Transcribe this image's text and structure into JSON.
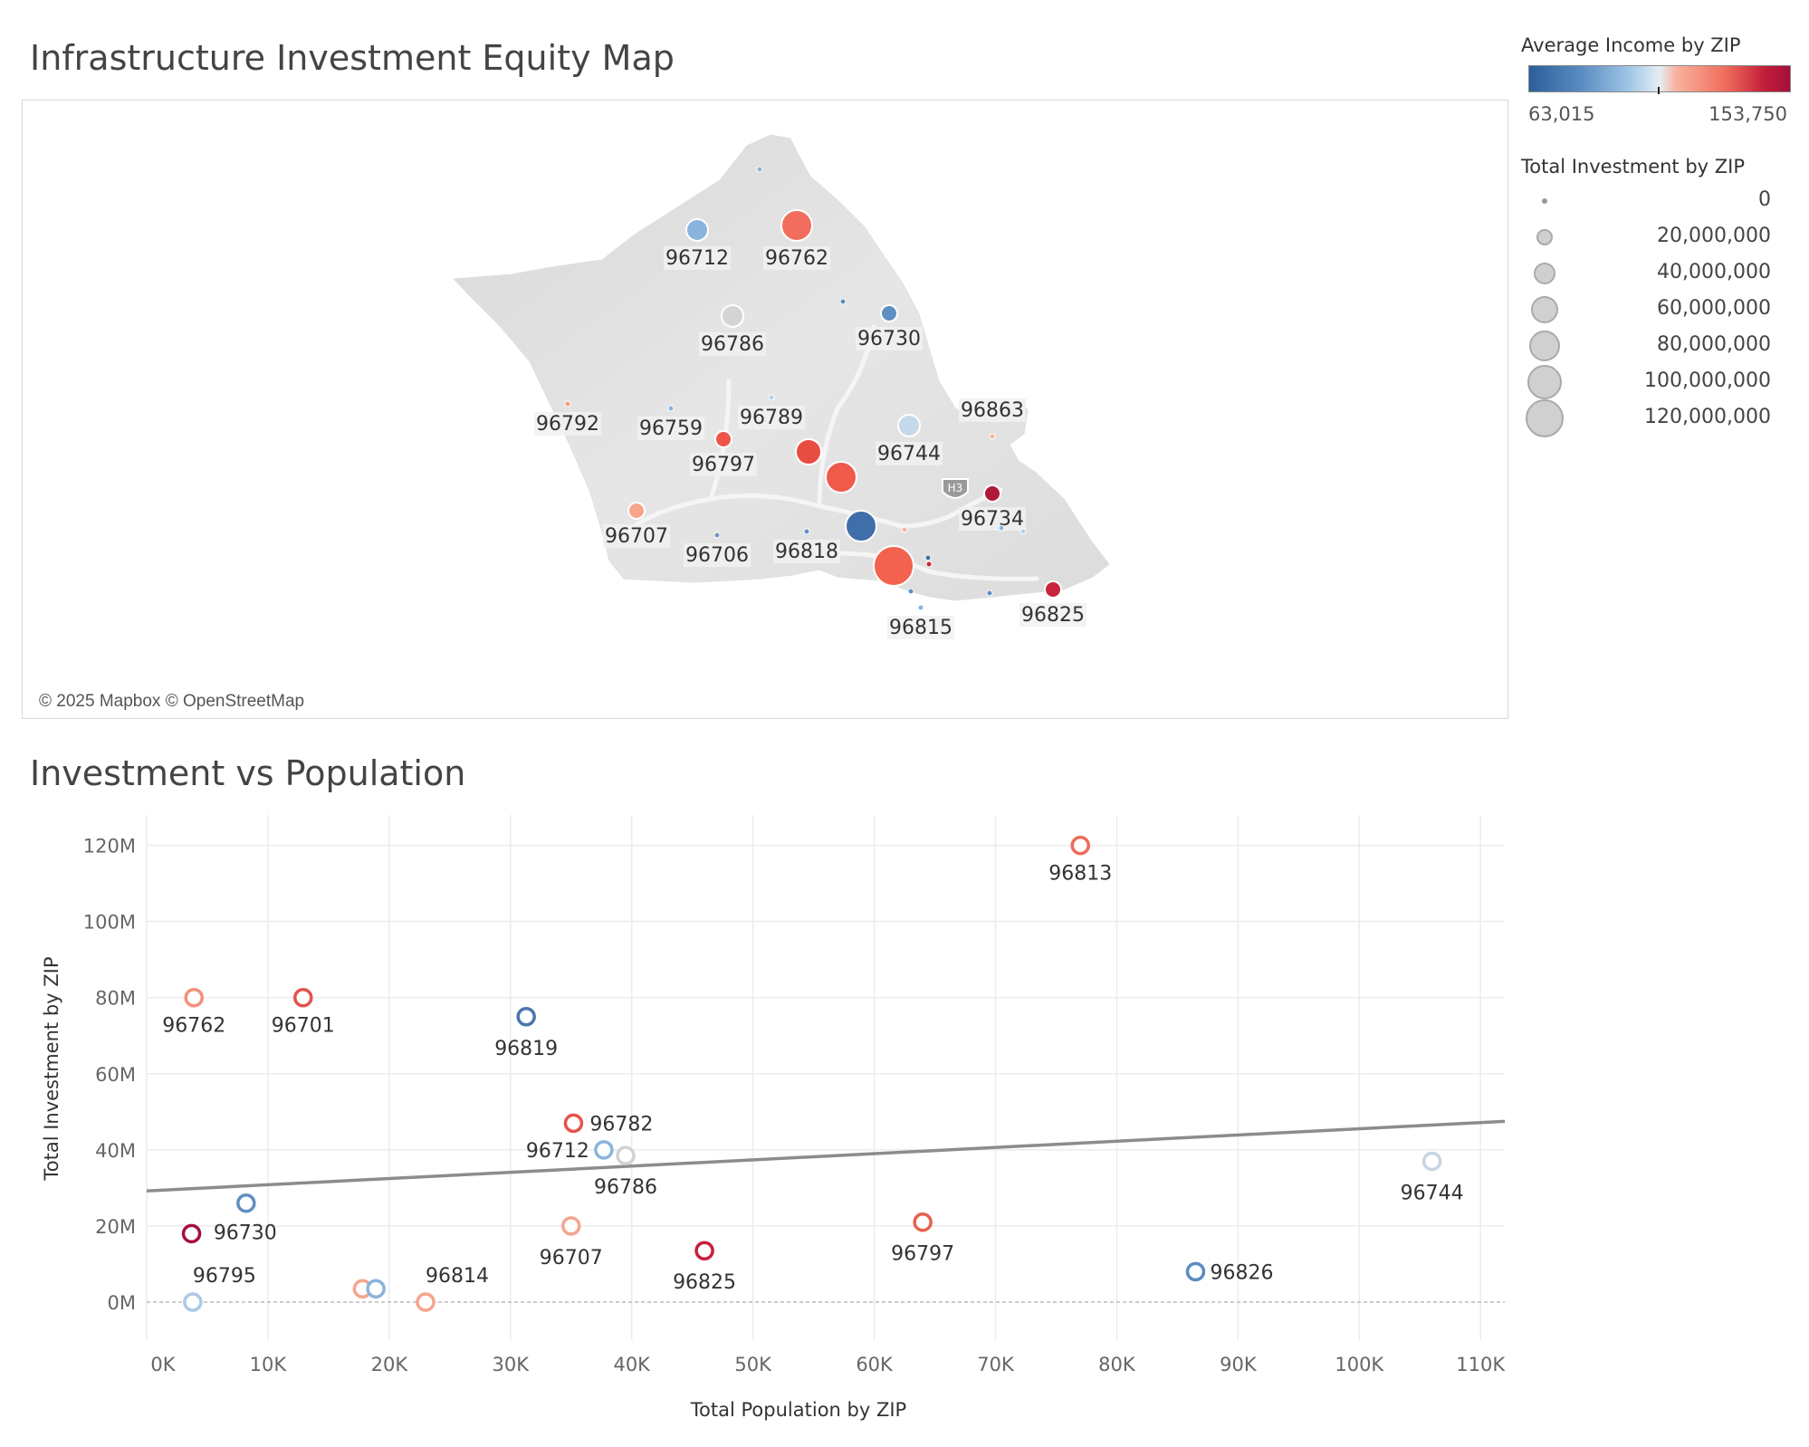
{
  "map": {
    "title": "Infrastructure Investment Equity Map",
    "credit": "© 2025 Mapbox © OpenStreetMap",
    "road_badge": "H3",
    "markers": [
      {
        "zip": "96712",
        "color": "#8ab4dd",
        "size": "medium",
        "label": true
      },
      {
        "zip": "96762",
        "color": "#f26d5d",
        "size": "large",
        "label": true
      },
      {
        "zip": "96786",
        "color": "#d4d4d4",
        "size": "medium",
        "label": true
      },
      {
        "zip": "96730",
        "color": "#5f8fc0",
        "size": "small",
        "label": true
      },
      {
        "zip": "96792",
        "color": "#f4997f",
        "size": "tiny",
        "label": true
      },
      {
        "zip": "96759",
        "color": "#8ab4dd",
        "size": "tiny",
        "label": true
      },
      {
        "zip": "96789",
        "color": "#b6d2ea",
        "size": "tiny",
        "label": true
      },
      {
        "zip": "96797",
        "color": "#ec5548",
        "size": "small",
        "label": true
      },
      {
        "zip": "96744",
        "color": "#c6d9ea",
        "size": "medium",
        "label": true
      },
      {
        "zip": "96863",
        "color": "#f6b49c",
        "size": "tiny",
        "label": true
      },
      {
        "zip": "96734",
        "color": "#b01a37",
        "size": "small",
        "label": true
      },
      {
        "zip": "96707",
        "color": "#f6a58b",
        "size": "small",
        "label": true
      },
      {
        "zip": "96706",
        "color": "#7097c4",
        "size": "tiny",
        "label": true
      },
      {
        "zip": "96818",
        "color": "#5f8fc0",
        "size": "tiny",
        "label": true
      },
      {
        "zip": "96825",
        "color": "#c8253c",
        "size": "small",
        "label": true
      },
      {
        "zip": "96815",
        "color": "#8ab4dd",
        "size": "tiny",
        "label": true
      },
      {
        "zip": "",
        "color": "#e84d42",
        "size": "medium-large",
        "label": false
      },
      {
        "zip": "",
        "color": "#ef5a4b",
        "size": "large",
        "label": false
      },
      {
        "zip": "",
        "color": "#3f6ea8",
        "size": "large",
        "label": false
      },
      {
        "zip": "",
        "color": "#f3624f",
        "size": "xlarge",
        "label": false
      },
      {
        "zip": "",
        "color": "#8ab4dd",
        "size": "tiny",
        "label": false
      },
      {
        "zip": "",
        "color": "#5f8fc0",
        "size": "tiny",
        "label": false
      },
      {
        "zip": "",
        "color": "#3f6ea8",
        "size": "tiny",
        "label": false
      },
      {
        "zip": "",
        "color": "#5f8fc0",
        "size": "tiny",
        "label": false
      },
      {
        "zip": "",
        "color": "#c8253c",
        "size": "tiny",
        "label": false
      },
      {
        "zip": "",
        "color": "#b6d2ea",
        "size": "tiny",
        "label": false
      },
      {
        "zip": "",
        "color": "#5f8fc0",
        "size": "tiny",
        "label": false
      },
      {
        "zip": "",
        "color": "#8ab4dd",
        "size": "tiny",
        "label": false
      },
      {
        "zip": "",
        "color": "#f6b49c",
        "size": "tiny",
        "label": false
      }
    ]
  },
  "legend": {
    "income_title": "Average Income by ZIP",
    "income_min": "63,015",
    "income_max": "153,750",
    "investment_title": "Total Investment by ZIP",
    "investment_sizes": [
      "0",
      "20,000,000",
      "40,000,000",
      "60,000,000",
      "80,000,000",
      "100,000,000",
      "120,000,000"
    ]
  },
  "scatter": {
    "title": "Investment vs Population"
  },
  "colors": {
    "low_income": "#2c5f9a",
    "mid_income": "#e4eef6",
    "high_income": "#a50f3b",
    "trend_line": "#8c8c8c"
  },
  "chart_data": {
    "type": "scatter",
    "title": "Investment vs Population",
    "xlabel": "Total Population by ZIP",
    "ylabel": "Total Investment by ZIP",
    "xlim": [
      0,
      112000
    ],
    "ylim": [
      -10,
      128
    ],
    "x_ticks": [
      0,
      10000,
      20000,
      30000,
      40000,
      50000,
      60000,
      70000,
      80000,
      90000,
      100000,
      110000
    ],
    "x_tick_labels": [
      "0K",
      "10K",
      "20K",
      "30K",
      "40K",
      "50K",
      "60K",
      "70K",
      "80K",
      "90K",
      "100K",
      "110K"
    ],
    "y_ticks": [
      0,
      20,
      40,
      60,
      80,
      100,
      120
    ],
    "y_tick_labels": [
      "0M",
      "20M",
      "40M",
      "60M",
      "80M",
      "100M",
      "120M"
    ],
    "grid": true,
    "trend_line": {
      "x": [
        0,
        112000
      ],
      "y": [
        29.2,
        47.5
      ]
    },
    "points": [
      {
        "zip": "96813",
        "x": 77000,
        "y": 120,
        "color": "#ef6a5a",
        "label": true
      },
      {
        "zip": "96762",
        "x": 3900,
        "y": 80,
        "color": "#f4907a",
        "label": true
      },
      {
        "zip": "96701",
        "x": 12900,
        "y": 80,
        "color": "#e4524a",
        "label": true
      },
      {
        "zip": "96819",
        "x": 31300,
        "y": 75,
        "color": "#4a76ab",
        "label": true
      },
      {
        "zip": "96782",
        "x": 35200,
        "y": 47,
        "color": "#e8524a",
        "label": true
      },
      {
        "zip": "96712",
        "x": 37700,
        "y": 40,
        "color": "#8ab4dd",
        "label": true
      },
      {
        "zip": "96786",
        "x": 39500,
        "y": 38.5,
        "color": "#d2d2d2",
        "label": true
      },
      {
        "zip": "96744",
        "x": 106000,
        "y": 37,
        "color": "#c6d5e3",
        "label": true
      },
      {
        "zip": "96730",
        "x": 8200,
        "y": 26,
        "color": "#5f8fc0",
        "label": true
      },
      {
        "zip": "96707",
        "x": 35000,
        "y": 20,
        "color": "#f4a58d",
        "label": true
      },
      {
        "zip": "96797",
        "x": 64000,
        "y": 21,
        "color": "#e8604e",
        "label": true
      },
      {
        "zip": "",
        "x": 3700,
        "y": 18,
        "color": "#a50f3b",
        "label": false
      },
      {
        "zip": "96825",
        "x": 46000,
        "y": 13.5,
        "color": "#c51f3a",
        "label": true
      },
      {
        "zip": "96826",
        "x": 86500,
        "y": 8,
        "color": "#5a8cc2",
        "label": true
      },
      {
        "zip": "96795",
        "x": 3800,
        "y": 0,
        "color": "#a9c9e6",
        "label": true
      },
      {
        "zip": "",
        "x": 17800,
        "y": 3.5,
        "color": "#f4a58d",
        "label": false
      },
      {
        "zip": "",
        "x": 18900,
        "y": 3.5,
        "color": "#8ab4dd",
        "label": false
      },
      {
        "zip": "96814",
        "x": 23000,
        "y": 0,
        "color": "#f4a58d",
        "label": true
      }
    ]
  }
}
